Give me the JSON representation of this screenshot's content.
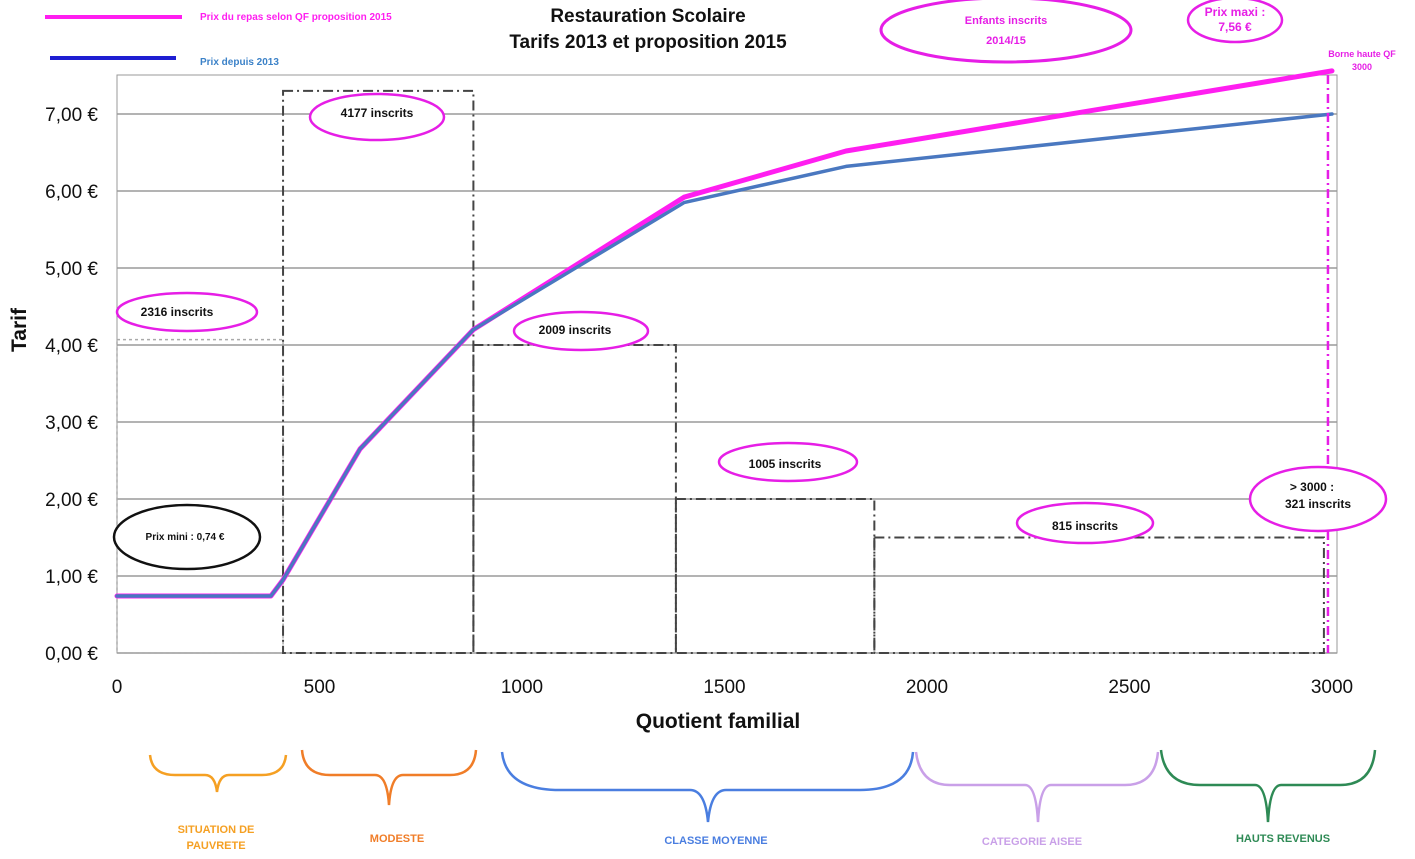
{
  "chart_data": {
    "type": "line",
    "title_line1": "Restauration Scolaire",
    "title_line2": "Tarifs 2013 et proposition 2015",
    "xlabel": "Quotient familial",
    "ylabel": "Tarif",
    "xlim": [
      0,
      3000
    ],
    "ylim": [
      0,
      7.56
    ],
    "x_ticks": [
      0,
      500,
      1000,
      1500,
      2000,
      2500,
      3000
    ],
    "x_tick_labels": [
      "0",
      "500",
      "1000",
      "1500",
      "2000",
      "2500",
      "3000"
    ],
    "y_ticks": [
      0,
      1,
      2,
      3,
      4,
      5,
      6,
      7
    ],
    "y_tick_labels": [
      "0,00 €",
      "1,00 €",
      "2,00 €",
      "3,00 €",
      "4,00 €",
      "5,00 €",
      "6,00 €",
      "7,00 €"
    ],
    "grid": "horizontal",
    "legend_position": "top-left",
    "series": [
      {
        "name": "Prix du repas selon QF proposition 2015",
        "color": "#ff1ef0",
        "x": [
          0,
          380,
          410,
          600,
          880,
          1400,
          1800,
          3000
        ],
        "y": [
          0.74,
          0.74,
          0.95,
          2.65,
          4.2,
          5.92,
          6.52,
          7.56
        ]
      },
      {
        "name": "Prix depuis 2013",
        "color": "#4a78c0",
        "x": [
          0,
          380,
          410,
          600,
          880,
          1400,
          1800,
          3000
        ],
        "y": [
          0.74,
          0.74,
          0.95,
          2.65,
          4.2,
          5.85,
          6.32,
          7.0
        ]
      }
    ],
    "brackets": [
      {
        "x0": 0,
        "x1": 410,
        "y": 4.07,
        "label": "2316 inscrits"
      },
      {
        "x0": 410,
        "x1": 880,
        "y": 7.3,
        "label": "4177  inscrits"
      },
      {
        "x0": 880,
        "x1": 1380,
        "y": 4.0,
        "label": "2009 inscrits"
      },
      {
        "x0": 1380,
        "x1": 1870,
        "y": 2.0,
        "label": "1005 inscrits"
      },
      {
        "x0": 1870,
        "x1": 2980,
        "y": 1.5,
        "label": "815  inscrits"
      }
    ],
    "borne_haute_x": 2990,
    "annotations": {
      "prix_mini": "Prix mini : 0,74 €",
      "enfants_inscrits_line1": "Enfants inscrits",
      "enfants_inscrits_line2": "2014/15",
      "prix_maxi_line1": "Prix maxi :",
      "prix_maxi_line2": "7,56 €",
      "borne_haute_line1": "Borne haute QF",
      "borne_haute_line2": "3000",
      "above_3000_line1": "> 3000 :",
      "above_3000_line2": "321  inscrits"
    },
    "segments": [
      {
        "label_line1": "SITUATION DE",
        "label_line2": "PAUVRETE",
        "color": "#f5a023"
      },
      {
        "label_line1": "MODESTE",
        "label_line2": "",
        "color": "#f07d28"
      },
      {
        "label_line1": "CLASSE MOYENNE",
        "label_line2": "",
        "color": "#4a7ee0"
      },
      {
        "label_line1": "CATEGORIE AISEE",
        "label_line2": "",
        "color": "#c9a0e8"
      },
      {
        "label_line1": "HAUTS REVENUS",
        "label_line2": "",
        "color": "#2e8a55"
      }
    ]
  }
}
